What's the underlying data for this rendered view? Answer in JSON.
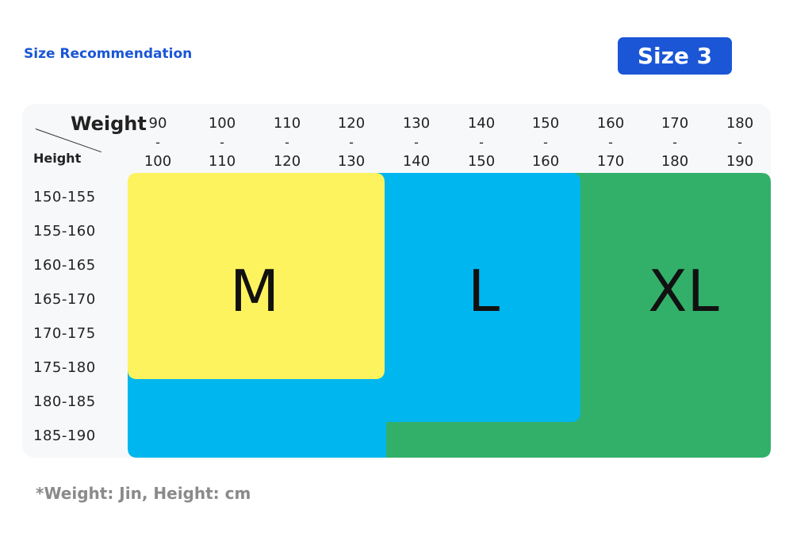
{
  "title": "Size Recommendation",
  "badge": "Size 3",
  "header": {
    "weight_label": "Weight",
    "height_label": "Height",
    "dash": "-"
  },
  "weight_ranges": [
    {
      "low": "90",
      "high": "100"
    },
    {
      "low": "100",
      "high": "110"
    },
    {
      "low": "110",
      "high": "120"
    },
    {
      "low": "120",
      "high": "130"
    },
    {
      "low": "130",
      "high": "140"
    },
    {
      "low": "140",
      "high": "150"
    },
    {
      "low": "150",
      "high": "160"
    },
    {
      "low": "160",
      "high": "170"
    },
    {
      "low": "170",
      "high": "180"
    },
    {
      "low": "180",
      "high": "190"
    }
  ],
  "height_ranges": [
    "150-155",
    "155-160",
    "160-165",
    "165-170",
    "170-175",
    "175-180",
    "180-185",
    "185-190"
  ],
  "sizes": {
    "m": "M",
    "l": "L",
    "xl": "XL"
  },
  "colors": {
    "accent": "#1a56d6",
    "m": "#fdf35e",
    "l": "#00b6ee",
    "xl": "#32b06a"
  },
  "footnote": "*Weight: Jin, Height: cm"
}
